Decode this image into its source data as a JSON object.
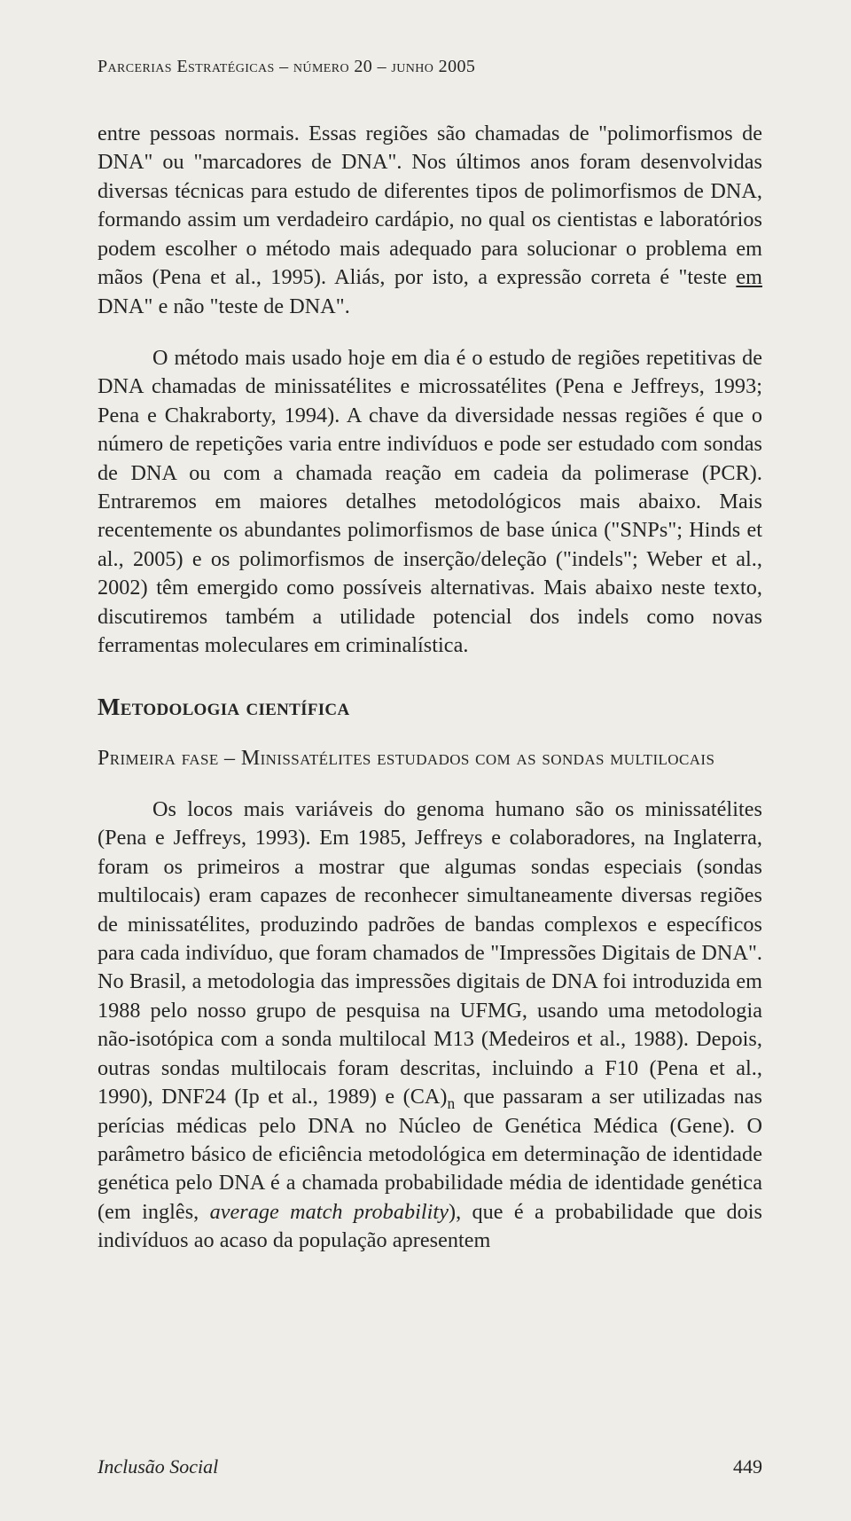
{
  "header": {
    "running": "Parcerias Estratégicas – número 20 – junho 2005"
  },
  "paragraphs": {
    "p1_a": "entre pessoas normais. Essas regiões são chamadas de \"polimorfismos de DNA\" ou \"marcadores de DNA\". Nos últimos anos foram desenvolvidas diversas técnicas para estudo de diferentes tipos de polimorfismos de DNA, formando assim um verdadeiro cardápio, no qual os cientistas e laboratórios podem escolher o método mais adequado para solucionar o problema em mãos (Pena et al., 1995). Aliás, por isto, a expressão correta é \"teste ",
    "p1_em": "em",
    "p1_b": " DNA\" e não \"teste de DNA\".",
    "p2": "O método mais usado hoje em dia é o estudo de regiões repetitivas de DNA chamadas de minissatélites e microssatélites (Pena e Jeffreys, 1993; Pena e Chakraborty, 1994). A chave da diversidade nessas regiões é que o número de repetições varia entre indivíduos e pode ser estudado com sondas de DNA ou com a chamada reação em cadeia da polimerase (PCR). Entraremos em maiores detalhes metodológicos mais abaixo. Mais recentemente os abundantes polimorfismos de base única (\"SNPs\"; Hinds et al., 2005) e os polimorfismos de inserção/deleção (\"indels\"; Weber et al., 2002) têm emergido como possíveis alternativas. Mais abaixo neste texto, discutiremos também a utilidade potencial dos indels como novas ferramentas moleculares em criminalística.",
    "p3_a": "Os locos mais variáveis do genoma humano são os minissatélites (Pena e Jeffreys, 1993). Em 1985, Jeffreys e colaboradores, na Inglaterra, foram os primeiros a mostrar que algumas sondas especiais (sondas multilocais) eram capazes de reconhecer simultaneamente diversas regiões de minissatélites, produzindo padrões de bandas complexos e específicos para cada indivíduo, que foram chamados de \"Impressões Digitais de DNA\". No Brasil, a metodologia das impressões digitais de DNA foi introduzida em 1988 pelo nosso grupo de pesquisa na UFMG, usando uma metodologia não-isotópica com a sonda multilocal M13 (Medeiros et al., 1988). Depois, outras sondas multilocais foram descritas, incluindo a F10 (Pena et al., 1990), DNF24 (Ip et al., 1989) e (CA)",
    "p3_sub": "n",
    "p3_b": " que passaram a ser utilizadas nas perícias médicas pelo DNA no Núcleo de Genética Médica (Gene). O parâmetro básico de eficiência metodológica em determinação de identidade genética pelo DNA é a chamada probabilidade média de identidade genética (em inglês, ",
    "p3_it": "average match probability",
    "p3_c": "), que é a probabilidade que dois indivíduos ao acaso da população apresentem"
  },
  "headings": {
    "h1": "Metodologia científica",
    "h2": "Primeira fase – Minissatélites estudados com as sondas multilocais"
  },
  "footer": {
    "section": "Inclusão Social",
    "page": "449"
  }
}
